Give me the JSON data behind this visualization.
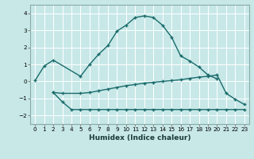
{
  "xlabel": "Humidex (Indice chaleur)",
  "bg_color": "#c8e8e8",
  "grid_color": "#aad4d4",
  "line_color": "#1a6b6b",
  "xlim": [
    -0.5,
    23.5
  ],
  "ylim": [
    -2.5,
    4.5
  ],
  "xticks": [
    0,
    1,
    2,
    3,
    4,
    5,
    6,
    7,
    8,
    9,
    10,
    11,
    12,
    13,
    14,
    15,
    16,
    17,
    18,
    19,
    20,
    21,
    22,
    23
  ],
  "yticks": [
    -2,
    -1,
    0,
    1,
    2,
    3,
    4
  ],
  "line1_x": [
    0,
    1,
    2,
    5,
    6,
    7,
    8,
    9,
    10,
    11,
    12,
    13,
    14,
    15,
    16,
    17,
    18,
    19,
    20
  ],
  "line1_y": [
    0.05,
    0.9,
    1.25,
    0.3,
    1.0,
    1.6,
    2.1,
    2.95,
    3.3,
    3.75,
    3.85,
    3.75,
    3.3,
    2.6,
    1.5,
    1.2,
    0.85,
    0.38,
    0.15
  ],
  "line2_x": [
    2,
    3,
    5,
    6,
    7,
    8,
    9,
    10,
    11,
    12,
    13,
    14,
    15,
    16,
    17,
    18,
    19,
    20,
    21,
    22,
    23
  ],
  "line2_y": [
    -0.65,
    -0.7,
    -0.7,
    -0.65,
    -0.55,
    -0.45,
    -0.35,
    -0.25,
    -0.18,
    -0.1,
    -0.05,
    0.0,
    0.05,
    0.1,
    0.18,
    0.25,
    0.3,
    0.38,
    -0.7,
    -1.05,
    -1.35
  ],
  "line3_x": [
    2,
    3,
    4,
    5,
    6,
    7,
    8,
    9,
    10,
    11,
    12,
    13,
    14,
    15,
    16,
    17,
    18,
    19,
    20,
    21,
    22,
    23
  ],
  "line3_y": [
    -0.65,
    -1.2,
    -1.65,
    -1.65,
    -1.65,
    -1.65,
    -1.65,
    -1.65,
    -1.65,
    -1.65,
    -1.65,
    -1.65,
    -1.65,
    -1.65,
    -1.65,
    -1.65,
    -1.65,
    -1.65,
    -1.65,
    -1.65,
    -1.65,
    -1.65
  ]
}
